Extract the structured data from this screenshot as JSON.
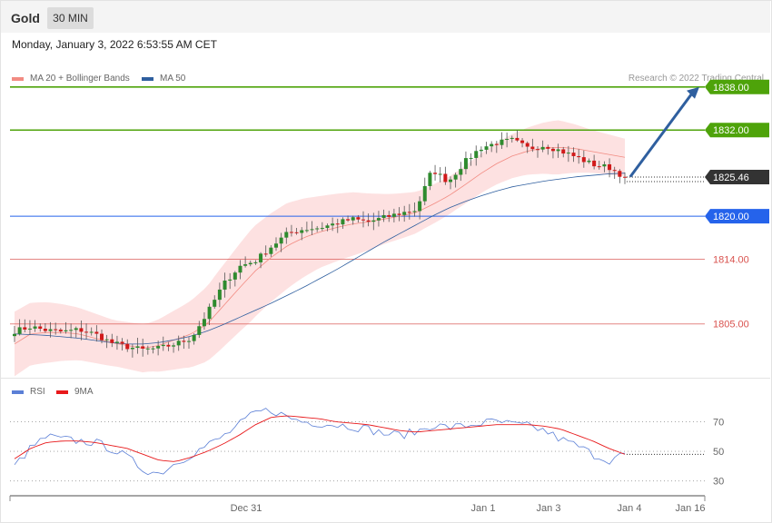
{
  "header": {
    "instrument": "Gold",
    "timeframe": "30 MIN",
    "datetime": "Monday, January 3, 2022 6:53:55 AM CET"
  },
  "legend": {
    "ma20": {
      "label": "MA 20 + Bollinger Bands",
      "color": "#f28b82"
    },
    "ma50": {
      "label": "MA 50",
      "color": "#2f5f9f"
    },
    "rsi": {
      "label": "RSI",
      "color": "#5b7fd6"
    },
    "rsi_ma": {
      "label": "9MA",
      "color": "#e8191b"
    }
  },
  "copyright": "Research © 2022 Trading Central",
  "chart_data": [
    {
      "type": "candlestick",
      "title": "",
      "ylim": [
        1797.5,
        1840
      ],
      "current_price": 1825.46,
      "current_price_label": "1825.46",
      "levels": [
        {
          "value": 1838.0,
          "label": "1838.00",
          "kind": "target",
          "color": "#4ea30a"
        },
        {
          "value": 1832.0,
          "label": "1832.00",
          "kind": "target",
          "color": "#4ea30a"
        },
        {
          "value": 1820.0,
          "label": "1820.00",
          "kind": "pivot",
          "color": "#2563eb"
        },
        {
          "value": 1814.0,
          "label": "1814.00",
          "kind": "support",
          "color": "#d9534f"
        },
        {
          "value": 1805.0,
          "label": "1805.00",
          "kind": "support",
          "color": "#d9534f"
        }
      ],
      "projection": {
        "from": 1825.5,
        "to": 1838.0
      },
      "x_ticks": [
        "Dec 31",
        "Jan 1",
        "Jan 3",
        "Jan 4",
        "Jan 16"
      ],
      "close_keypoints": [
        1804.0,
        1804.6,
        1804.1,
        1803.9,
        1804.2,
        1803.6,
        1802.4,
        1801.8,
        1801.4,
        1801.6,
        1802.2,
        1803.0,
        1806.5,
        1810.5,
        1813.0,
        1813.8,
        1815.8,
        1817.6,
        1818.2,
        1818.4,
        1819.0,
        1819.6,
        1819.2,
        1819.8,
        1820.4,
        1820.9,
        1826.5,
        1824.8,
        1827.5,
        1829.5,
        1830.2,
        1830.6,
        1829.4,
        1829.9,
        1829.1,
        1828.2,
        1827.2,
        1826.8,
        1825.46
      ],
      "ma20_keypoints": [
        1802.2,
        1803.6,
        1803.8,
        1803.8,
        1803.6,
        1803.0,
        1802.4,
        1802.0,
        1801.6,
        1802.0,
        1802.8,
        1803.6,
        1805.0,
        1807.5,
        1810.0,
        1812.4,
        1814.3,
        1815.9,
        1817.0,
        1817.8,
        1818.4,
        1818.9,
        1819.2,
        1819.6,
        1820.0,
        1820.5,
        1821.6,
        1822.8,
        1824.3,
        1825.9,
        1827.3,
        1828.4,
        1829.1,
        1829.5,
        1829.6,
        1829.4,
        1829.0,
        1828.6,
        1828.2
      ],
      "ma50_keypoints": [
        1803.6,
        1803.5,
        1803.4,
        1803.2,
        1803.0,
        1802.7,
        1802.4,
        1802.2,
        1802.2,
        1802.4,
        1802.8,
        1803.3,
        1804.0,
        1804.9,
        1805.9,
        1806.9,
        1807.9,
        1809.0,
        1810.1,
        1811.3,
        1812.5,
        1813.8,
        1815.1,
        1816.4,
        1817.6,
        1818.8,
        1820.0,
        1821.1,
        1822.0,
        1822.8,
        1823.5,
        1824.1,
        1824.5,
        1824.9,
        1825.2,
        1825.5,
        1825.7,
        1825.9,
        1826.0
      ]
    },
    {
      "type": "line",
      "title": "",
      "ylim": [
        20,
        85
      ],
      "y_ticks": [
        70,
        50,
        30
      ],
      "y_tick_labels": [
        "70",
        "50",
        "30"
      ],
      "series_rsi_keypoints": [
        40,
        52,
        60,
        58,
        57,
        56,
        52,
        46,
        38,
        35,
        42,
        48,
        54,
        60,
        68,
        76,
        78,
        73,
        70,
        69,
        68,
        67,
        65,
        62,
        61,
        63,
        68,
        66,
        67,
        69,
        70,
        68,
        67,
        64,
        58,
        54,
        48,
        44,
        48
      ],
      "series_ma_keypoints": [
        45,
        52,
        56,
        57,
        57,
        56,
        54,
        52,
        48,
        44,
        43,
        46,
        50,
        55,
        61,
        68,
        73,
        74,
        73,
        72,
        70,
        69,
        68,
        66,
        64,
        63,
        64,
        65,
        66,
        67,
        68,
        68,
        68,
        67,
        65,
        61,
        57,
        52,
        48
      ]
    }
  ]
}
